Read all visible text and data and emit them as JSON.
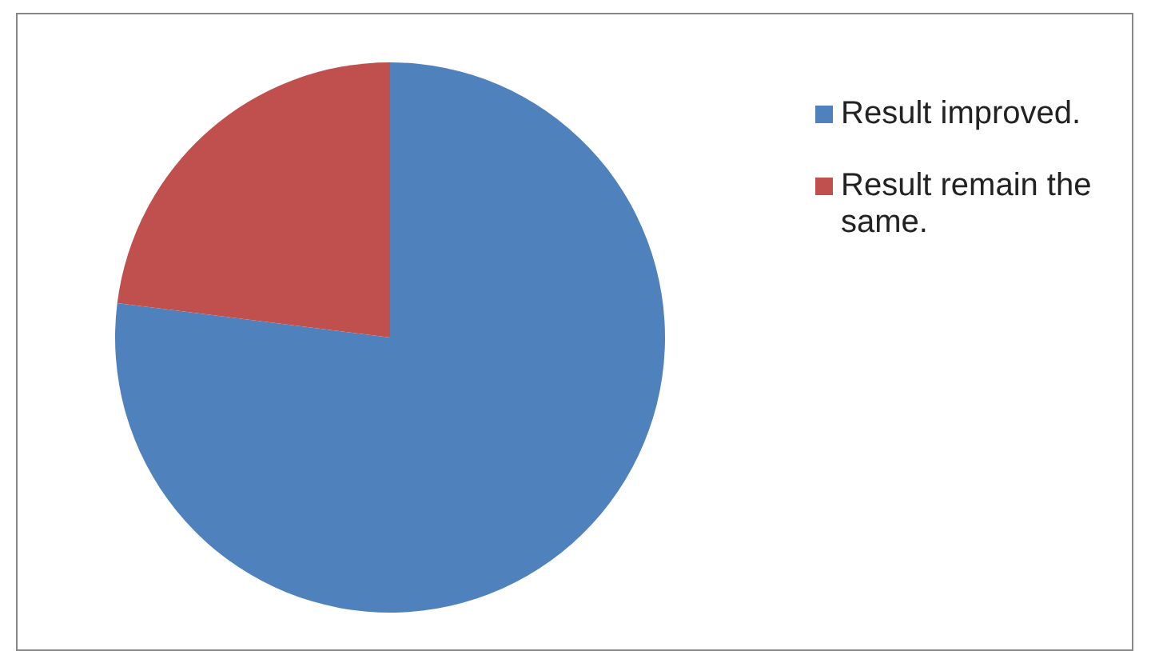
{
  "chart_data": {
    "type": "pie",
    "categories": [
      "Result improved.",
      "Result remain the same."
    ],
    "values": [
      77,
      23
    ],
    "colors": [
      "#4f81bd",
      "#c0504d"
    ],
    "legend": "top right"
  }
}
